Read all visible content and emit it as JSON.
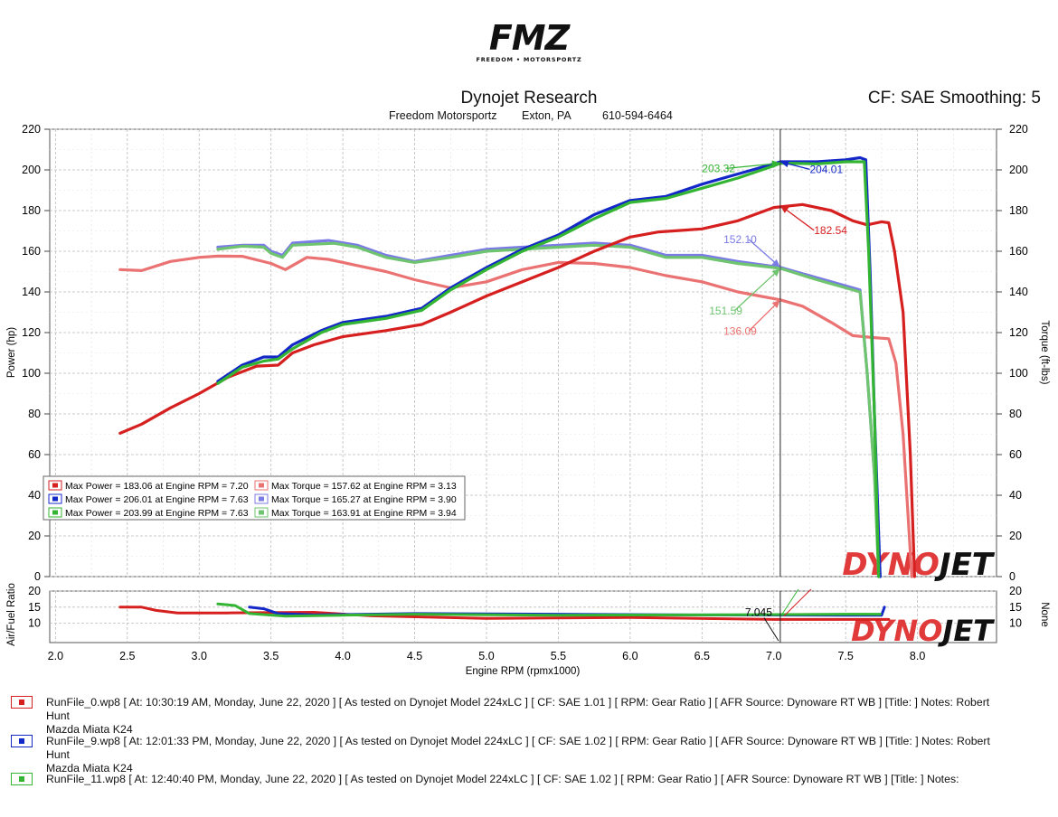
{
  "logo": {
    "main": "FMZ",
    "sub": "FREEDOM • MOTORSPORTZ"
  },
  "header": {
    "title": "Dynojet Research",
    "shop": "Freedom Motorsportz",
    "city": "Exton, PA",
    "phone": "610-594-6464",
    "cf_info": "CF: SAE Smoothing: 5"
  },
  "watermark": {
    "part1": "DYNO",
    "part2": "JET"
  },
  "colors": {
    "red": "#d61f1f",
    "blue": "#1428c8",
    "green": "#33b533",
    "red_torque": "#eb7272",
    "blue_torque": "#7b7be6",
    "green_torque": "#6fc46f"
  },
  "chart_data": [
    {
      "type": "line",
      "title": "Dynojet Research",
      "xlabel": "Engine RPM (rpmx1000)",
      "ylabel": "Power (hp)",
      "y2label": "Torque (ft-lbs)",
      "xlim": [
        1.96,
        8.55
      ],
      "ylim": [
        0,
        220
      ],
      "x_ticks": [
        "2.0",
        "2.5",
        "3.0",
        "3.5",
        "4.0",
        "4.5",
        "5.0",
        "5.5",
        "6.0",
        "6.5",
        "7.0",
        "7.5",
        "8.0"
      ],
      "y_ticks": [
        "0",
        "20",
        "40",
        "60",
        "80",
        "100",
        "120",
        "140",
        "160",
        "180",
        "200",
        "220"
      ],
      "cursor_rpm": 7.045,
      "series": [
        {
          "name": "Max Power = 183.06 at Engine RPM = 7.20",
          "kind": "power",
          "color": "red",
          "points": [
            [
              2.45,
              70.5
            ],
            [
              2.6,
              75
            ],
            [
              2.8,
              83
            ],
            [
              3.0,
              90
            ],
            [
              3.2,
              98
            ],
            [
              3.4,
              103.5
            ],
            [
              3.55,
              104
            ],
            [
              3.65,
              110
            ],
            [
              3.8,
              114
            ],
            [
              4.0,
              118
            ],
            [
              4.3,
              121
            ],
            [
              4.55,
              124
            ],
            [
              4.75,
              130
            ],
            [
              5.0,
              138
            ],
            [
              5.25,
              145
            ],
            [
              5.5,
              152
            ],
            [
              5.75,
              160
            ],
            [
              6.0,
              167
            ],
            [
              6.2,
              169.5
            ],
            [
              6.5,
              171
            ],
            [
              6.75,
              175
            ],
            [
              7.0,
              181.5
            ],
            [
              7.2,
              183
            ],
            [
              7.4,
              180
            ],
            [
              7.55,
              175
            ],
            [
              7.65,
              173
            ],
            [
              7.75,
              174.5
            ],
            [
              7.8,
              174
            ],
            [
              7.84,
              160
            ],
            [
              7.9,
              130
            ],
            [
              7.95,
              60
            ],
            [
              7.98,
              0
            ]
          ]
        },
        {
          "name": "Max Power = 206.01 at Engine RPM = 7.63",
          "kind": "power",
          "color": "blue",
          "points": [
            [
              3.13,
              96
            ],
            [
              3.3,
              104
            ],
            [
              3.45,
              108
            ],
            [
              3.55,
              108
            ],
            [
              3.65,
              114
            ],
            [
              3.85,
              121
            ],
            [
              4.0,
              125
            ],
            [
              4.3,
              128
            ],
            [
              4.55,
              132
            ],
            [
              4.75,
              142
            ],
            [
              5.0,
              152
            ],
            [
              5.25,
              161
            ],
            [
              5.5,
              168
            ],
            [
              5.75,
              178
            ],
            [
              6.0,
              185
            ],
            [
              6.25,
              187
            ],
            [
              6.5,
              193
            ],
            [
              6.75,
              198
            ],
            [
              7.0,
              203
            ],
            [
              7.045,
              204.01
            ],
            [
              7.3,
              204
            ],
            [
              7.5,
              205
            ],
            [
              7.6,
              206
            ],
            [
              7.64,
              205
            ],
            [
              7.67,
              150
            ],
            [
              7.7,
              80
            ],
            [
              7.74,
              0
            ]
          ]
        },
        {
          "name": "Max Power = 203.99 at Engine RPM = 7.63",
          "kind": "power",
          "color": "green",
          "points": [
            [
              3.13,
              95
            ],
            [
              3.3,
              103
            ],
            [
              3.45,
              106
            ],
            [
              3.55,
              107
            ],
            [
              3.65,
              112
            ],
            [
              3.85,
              120
            ],
            [
              4.0,
              124
            ],
            [
              4.3,
              127
            ],
            [
              4.55,
              131
            ],
            [
              4.75,
              141
            ],
            [
              5.0,
              151
            ],
            [
              5.25,
              160
            ],
            [
              5.5,
              167
            ],
            [
              5.75,
              176
            ],
            [
              6.0,
              184
            ],
            [
              6.25,
              186
            ],
            [
              6.5,
              191
            ],
            [
              6.75,
              196
            ],
            [
              7.0,
              202
            ],
            [
              7.045,
              203.32
            ],
            [
              7.3,
              203
            ],
            [
              7.5,
              204
            ],
            [
              7.63,
              204
            ],
            [
              7.66,
              160
            ],
            [
              7.7,
              80
            ],
            [
              7.73,
              0
            ]
          ]
        },
        {
          "name": "Max Torque = 157.62 at Engine RPM = 3.13",
          "kind": "torque",
          "color": "red_torque",
          "points": [
            [
              2.45,
              151
            ],
            [
              2.6,
              150.5
            ],
            [
              2.8,
              155
            ],
            [
              3.0,
              157
            ],
            [
              3.13,
              157.6
            ],
            [
              3.3,
              157.5
            ],
            [
              3.5,
              154
            ],
            [
              3.6,
              151
            ],
            [
              3.75,
              157
            ],
            [
              3.9,
              156
            ],
            [
              4.1,
              153
            ],
            [
              4.3,
              150
            ],
            [
              4.5,
              146
            ],
            [
              4.75,
              142
            ],
            [
              5.0,
              145
            ],
            [
              5.25,
              151
            ],
            [
              5.5,
              154.5
            ],
            [
              5.75,
              154
            ],
            [
              6.0,
              152
            ],
            [
              6.25,
              148
            ],
            [
              6.5,
              145
            ],
            [
              6.75,
              140
            ],
            [
              6.9,
              138
            ],
            [
              7.045,
              136.09
            ],
            [
              7.2,
              133
            ],
            [
              7.4,
              125
            ],
            [
              7.55,
              118.5
            ],
            [
              7.7,
              117.5
            ],
            [
              7.8,
              117
            ],
            [
              7.85,
              105
            ],
            [
              7.9,
              70
            ],
            [
              7.96,
              0
            ]
          ]
        },
        {
          "name": "Max Torque = 165.27 at Engine RPM = 3.90",
          "kind": "torque",
          "color": "blue_torque",
          "points": [
            [
              3.13,
              162
            ],
            [
              3.3,
              163
            ],
            [
              3.45,
              163
            ],
            [
              3.5,
              160
            ],
            [
              3.58,
              158
            ],
            [
              3.65,
              164
            ],
            [
              3.9,
              165.3
            ],
            [
              4.1,
              163
            ],
            [
              4.3,
              158
            ],
            [
              4.5,
              155
            ],
            [
              4.75,
              158
            ],
            [
              5.0,
              161
            ],
            [
              5.25,
              162
            ],
            [
              5.5,
              163
            ],
            [
              5.75,
              164
            ],
            [
              6.0,
              163
            ],
            [
              6.25,
              158
            ],
            [
              6.5,
              158
            ],
            [
              6.75,
              155
            ],
            [
              7.045,
              152.1
            ],
            [
              7.3,
              147
            ],
            [
              7.5,
              143
            ],
            [
              7.6,
              141
            ],
            [
              7.65,
              100
            ],
            [
              7.7,
              50
            ],
            [
              7.74,
              0
            ]
          ]
        },
        {
          "name": "Max Torque = 163.91 at Engine RPM = 3.94",
          "kind": "torque",
          "color": "green_torque",
          "points": [
            [
              3.13,
              161
            ],
            [
              3.3,
              162.5
            ],
            [
              3.45,
              162
            ],
            [
              3.5,
              159
            ],
            [
              3.58,
              157
            ],
            [
              3.65,
              163
            ],
            [
              3.94,
              163.9
            ],
            [
              4.1,
              162
            ],
            [
              4.3,
              157
            ],
            [
              4.5,
              154.5
            ],
            [
              4.75,
              157
            ],
            [
              5.0,
              160
            ],
            [
              5.25,
              161
            ],
            [
              5.5,
              162
            ],
            [
              5.75,
              163
            ],
            [
              6.0,
              162
            ],
            [
              6.25,
              157
            ],
            [
              6.5,
              157
            ],
            [
              6.75,
              154
            ],
            [
              7.045,
              151.59
            ],
            [
              7.3,
              146
            ],
            [
              7.5,
              142
            ],
            [
              7.6,
              140
            ],
            [
              7.65,
              100
            ],
            [
              7.7,
              50
            ],
            [
              7.73,
              0
            ]
          ]
        }
      ],
      "annotations": [
        {
          "text": "203.32",
          "color": "green",
          "target": [
            7.045,
            203.32
          ],
          "label": [
            6.5,
            199
          ]
        },
        {
          "text": "204.01",
          "color": "blue",
          "target": [
            7.045,
            204.01
          ],
          "label": [
            7.25,
            198.5
          ]
        },
        {
          "text": "182.54",
          "color": "red",
          "target": [
            7.045,
            182.54
          ],
          "label": [
            7.28,
            168.5
          ]
        },
        {
          "text": "152.10",
          "color": "blue_torque",
          "target": [
            7.045,
            152.1
          ],
          "label": [
            6.65,
            164
          ]
        },
        {
          "text": "151.59",
          "color": "green_torque",
          "target": [
            7.045,
            151.59
          ],
          "label": [
            6.55,
            129
          ]
        },
        {
          "text": "136.09",
          "color": "red_torque",
          "target": [
            7.045,
            136.09
          ],
          "label": [
            6.65,
            119
          ]
        }
      ]
    },
    {
      "type": "line",
      "ylabel": "Air/Fuel Ratio",
      "y2label": "None",
      "ylim": [
        4,
        20
      ],
      "y_ticks": [
        "10",
        "15",
        "20"
      ],
      "cursor_label": "7.045",
      "series": [
        {
          "color": "red",
          "points": [
            [
              2.45,
              15
            ],
            [
              2.6,
              15
            ],
            [
              2.7,
              14
            ],
            [
              2.85,
              13.2
            ],
            [
              3.2,
              13.2
            ],
            [
              3.8,
              13.4
            ],
            [
              4.2,
              12.3
            ],
            [
              5.0,
              11.5
            ],
            [
              6.0,
              11.8
            ],
            [
              7.0,
              11.2
            ],
            [
              7.8,
              11.2
            ]
          ]
        },
        {
          "color": "blue",
          "points": [
            [
              3.35,
              15
            ],
            [
              3.45,
              14.5
            ],
            [
              3.55,
              13
            ],
            [
              3.8,
              12.6
            ],
            [
              4.5,
              13
            ],
            [
              5.5,
              12.8
            ],
            [
              6.5,
              12.6
            ],
            [
              7.5,
              12.5
            ],
            [
              7.75,
              12.5
            ],
            [
              7.77,
              15
            ]
          ]
        },
        {
          "color": "green",
          "points": [
            [
              3.13,
              16
            ],
            [
              3.25,
              15.5
            ],
            [
              3.35,
              13
            ],
            [
              3.6,
              12.2
            ],
            [
              4.0,
              12.5
            ],
            [
              4.5,
              12.8
            ],
            [
              5.5,
              12.5
            ],
            [
              6.5,
              12.6
            ],
            [
              7.5,
              12.8
            ],
            [
              7.74,
              12.8
            ]
          ]
        }
      ]
    }
  ],
  "legend": [
    {
      "color": "red",
      "text": "Max Power = 183.06 at Engine RPM = 7.20"
    },
    {
      "color": "red_torque",
      "text": "Max Torque = 157.62 at Engine RPM = 3.13"
    },
    {
      "color": "blue",
      "text": "Max Power = 206.01 at Engine RPM = 7.63"
    },
    {
      "color": "blue_torque",
      "text": "Max Torque = 165.27 at Engine RPM = 3.90"
    },
    {
      "color": "green",
      "text": "Max Power = 203.99 at Engine RPM = 7.63"
    },
    {
      "color": "green_torque",
      "text": "Max Torque = 163.91 at Engine RPM = 3.94"
    }
  ],
  "runs": [
    {
      "color": "red",
      "line1": "RunFile_0.wp8 [ At: 10:30:19 AM, Monday, June 22, 2020 ] [ As tested on Dynojet Model 224xLC ] [ CF: SAE 1.01 ] [ RPM: Gear Ratio ] [ AFR Source: Dynoware RT WB ] [Title: ]  Notes: Robert Hunt",
      "line2": "Mazda Miata K24"
    },
    {
      "color": "blue",
      "line1": "RunFile_9.wp8 [ At: 12:01:33 PM, Monday, June 22, 2020 ] [ As tested on Dynojet Model 224xLC ] [ CF: SAE 1.02 ] [ RPM: Gear Ratio ] [ AFR Source: Dynoware RT WB ] [Title: ]  Notes: Robert Hunt",
      "line2": "Mazda Miata K24"
    },
    {
      "color": "green",
      "line1": "RunFile_11.wp8 [ At: 12:40:40 PM, Monday, June 22, 2020 ] [ As tested on Dynojet Model 224xLC ] [ CF: SAE 1.02 ] [ RPM: Gear Ratio ] [ AFR Source: Dynoware RT WB ] [Title: ]  Notes:",
      "line2": ""
    }
  ]
}
